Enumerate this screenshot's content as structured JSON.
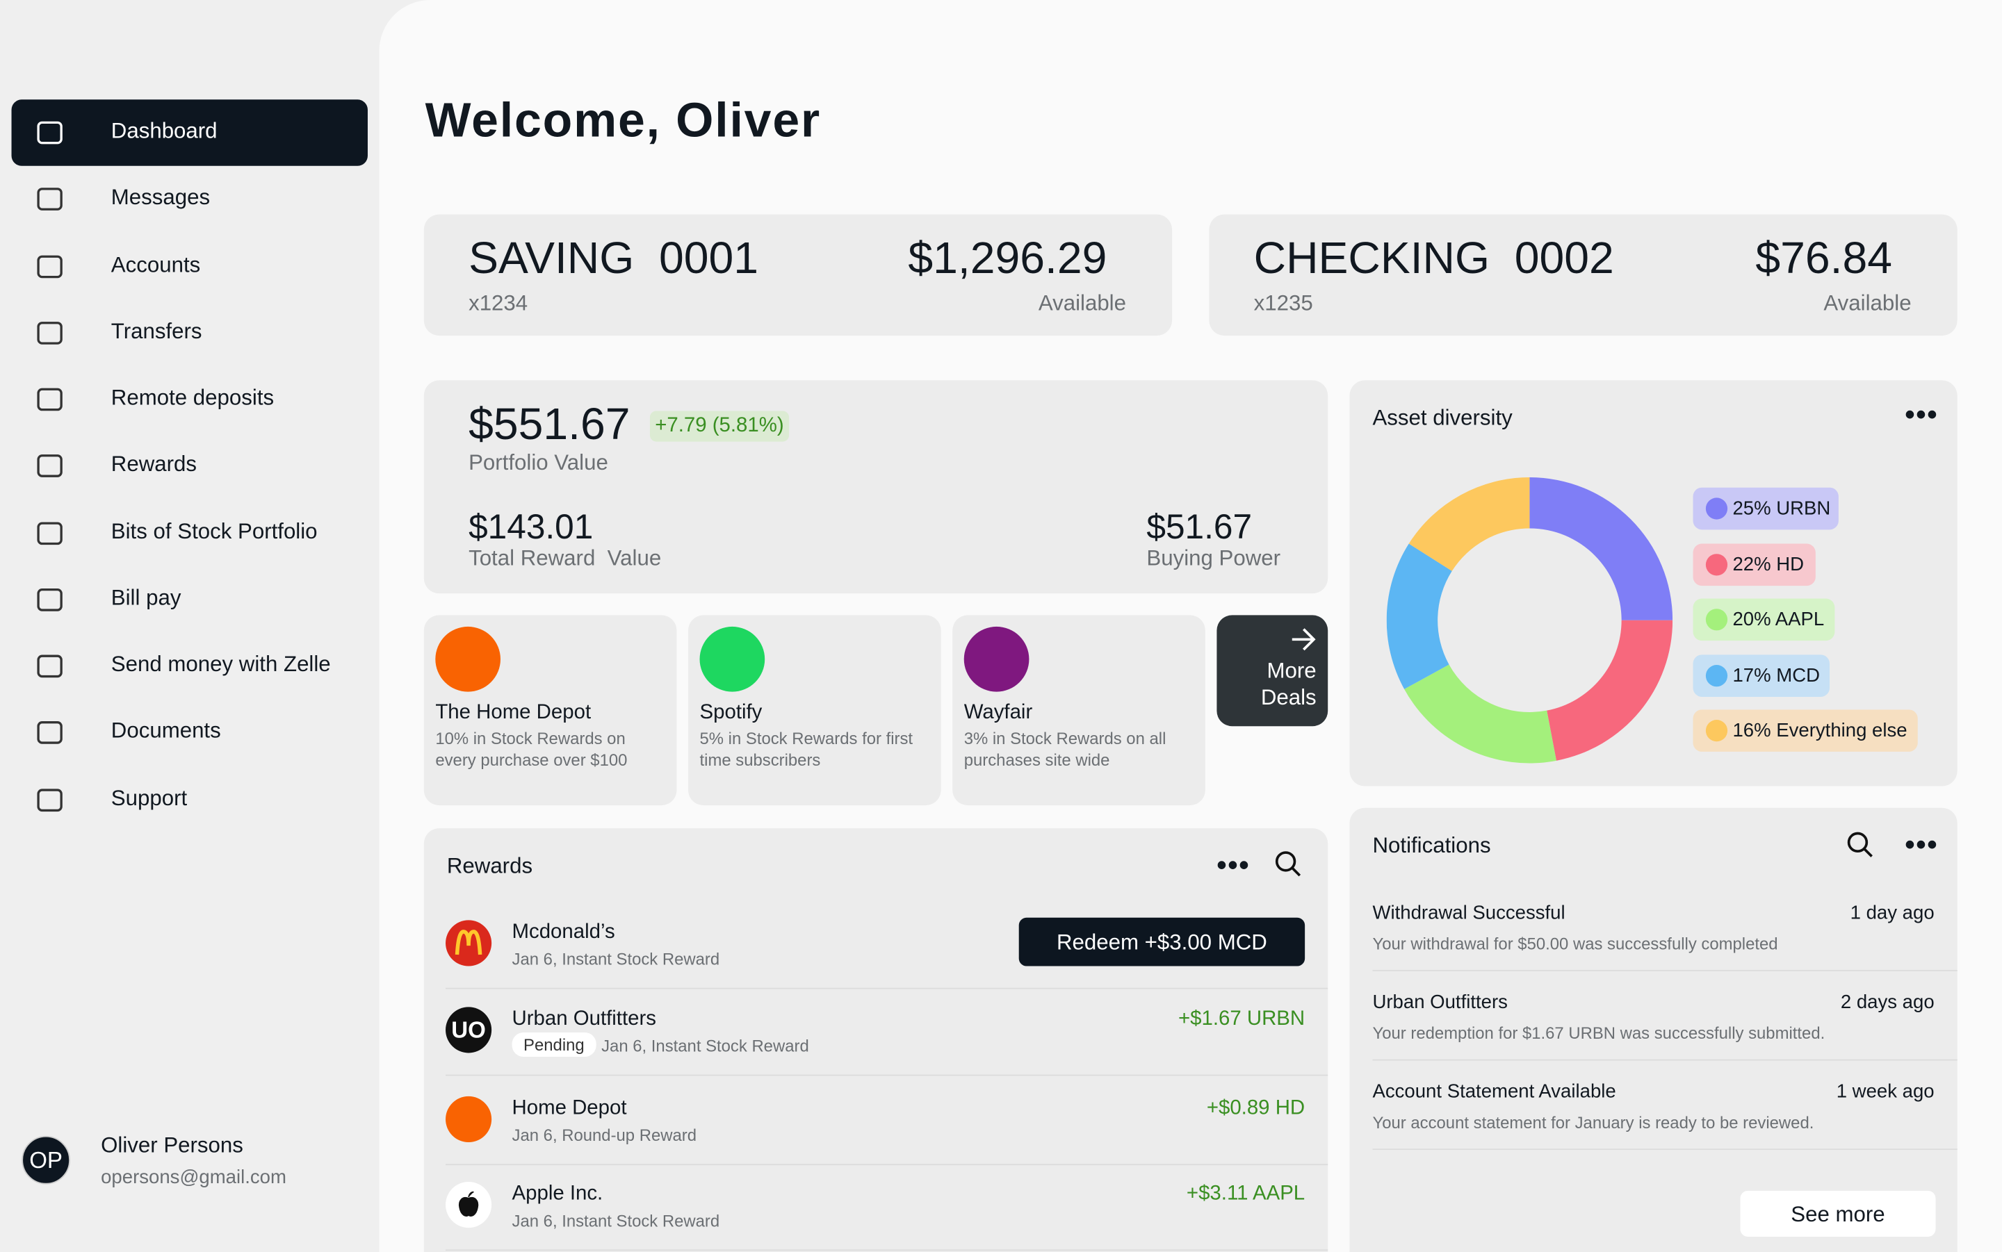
{
  "sidebar": {
    "nav": [
      "Dashboard",
      "Messages",
      "Accounts",
      "Transfers",
      "Remote deposits",
      "Rewards",
      "Bits of Stock Portfolio",
      "Bill pay",
      "Send money with Zelle",
      "Documents",
      "Support"
    ],
    "user": {
      "initials": "OP",
      "name": "Oliver Persons",
      "email": "opersons@gmail.com"
    }
  },
  "header": {
    "title": "Welcome, Oliver"
  },
  "accounts": [
    {
      "name": "SAVING  0001",
      "number": "x1234",
      "balance": "$1,296.29",
      "status": "Available"
    },
    {
      "name": "CHECKING  0002",
      "number": "x1235",
      "balance": "$76.84",
      "status": "Available"
    }
  ],
  "portfolio": {
    "value": "$551.67",
    "change": "+7.79 (5.81%)",
    "value_label": "Portfolio Value",
    "reward": "$143.01",
    "reward_label": "Total Reward  Value",
    "buying_power": "$51.67",
    "buying_power_label": "Buying Power"
  },
  "deals": {
    "items": [
      {
        "name": "The Home Depot",
        "description": "10% in Stock Rewards on every purchase over $100"
      },
      {
        "name": "Spotify",
        "description": "5%  in Stock Rewards for first time subscribers"
      },
      {
        "name": "Wayfair",
        "description": "3% in Stock Rewards on all purchases site wide"
      }
    ],
    "more": "More Deals"
  },
  "chart_data": {
    "type": "donut",
    "title": "Asset diversity",
    "categories": [
      "25% URBN",
      "22% HD",
      "20% AAPL",
      "17% MCD",
      "16% Everything else"
    ],
    "values": [
      25,
      22,
      20,
      17,
      16
    ],
    "colors": [
      "#7f7ef6",
      "#f7687d",
      "#a4f07c",
      "#5cb6f3",
      "#fdc85e"
    ]
  },
  "rewards": {
    "title": "Rewards",
    "items": [
      {
        "name": "Mcdonald’s",
        "detail": "Jan 6, Instant Stock Reward",
        "action": "Redeem +$3.00 MCD"
      },
      {
        "logo": "UO",
        "name": "Urban Outfitters",
        "status": "Pending",
        "detail": "Jan 6, Instant Stock Reward",
        "amount": "+$1.67 URBN"
      },
      {
        "name": "Home Depot",
        "detail": "Jan 6, Round-up Reward",
        "amount": "+$0.89 HD"
      },
      {
        "name": "Apple Inc.",
        "detail": "Jan 6, Instant Stock Reward",
        "amount": "+$3.11 AAPL"
      }
    ]
  },
  "notifications": {
    "title": "Notifications",
    "items": [
      {
        "title": "Withdrawal Successful",
        "time": "1 day ago",
        "description": "Your withdrawal for $50.00 was successfully completed"
      },
      {
        "title": "Urban Outfitters",
        "time": "2 days ago",
        "description": "Your redemption for $1.67 URBN was successfully submitted."
      },
      {
        "title": "Account Statement Available",
        "time": "1 week ago",
        "description": "Your account statement for January is ready to be reviewed."
      }
    ],
    "see_more": "See more"
  }
}
